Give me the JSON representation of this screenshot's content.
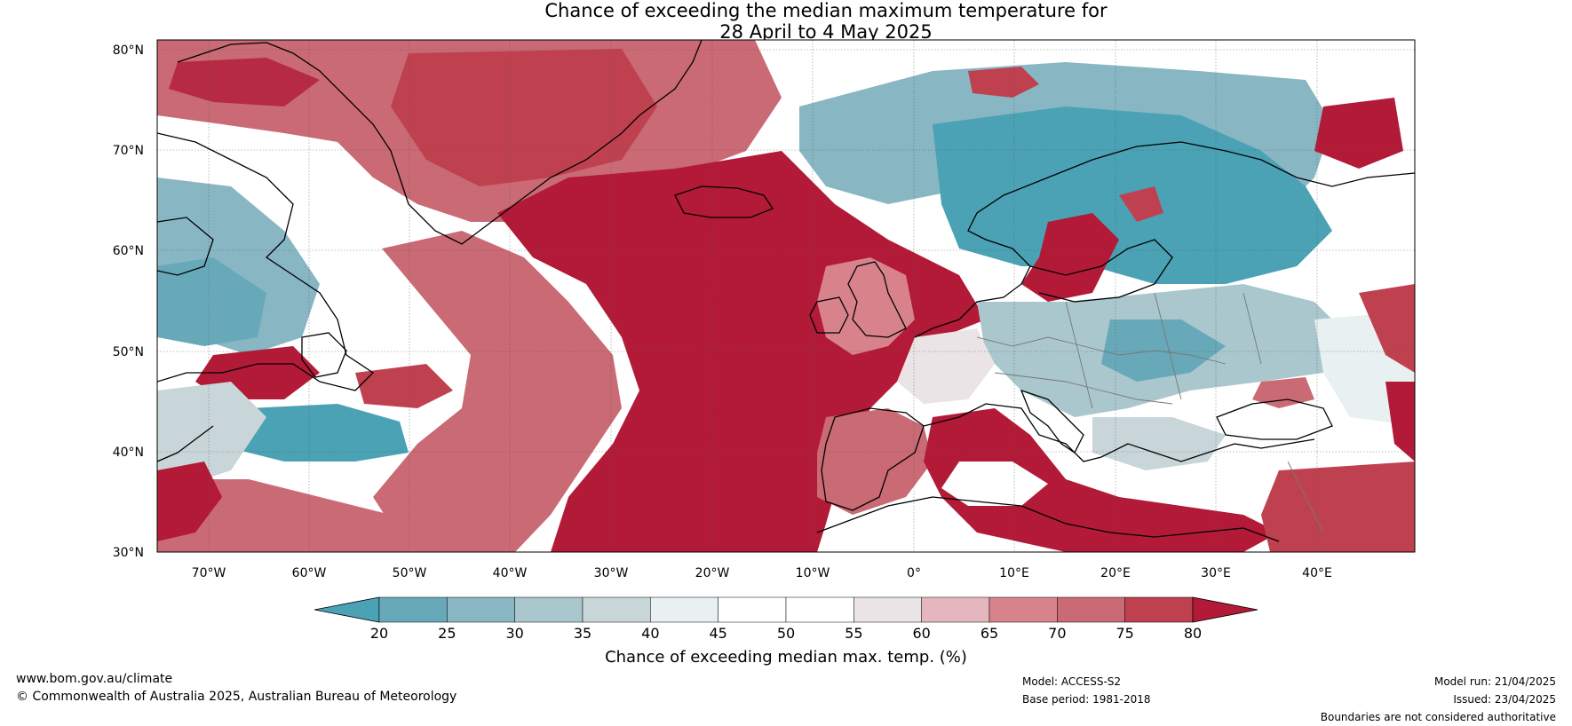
{
  "title": {
    "line1": "Chance of exceeding the median maximum temperature for",
    "line2": "28 April to 4 May 2025"
  },
  "map": {
    "lat_labels": [
      "80°N",
      "70°N",
      "60°N",
      "50°N",
      "40°N",
      "30°N"
    ],
    "lon_labels": [
      "70°W",
      "60°W",
      "50°W",
      "40°W",
      "30°W",
      "20°W",
      "10°W",
      "0°",
      "10°E",
      "20°E",
      "30°E",
      "40°E"
    ],
    "lat_range": [
      30,
      81
    ],
    "lon_range": [
      -75,
      50
    ]
  },
  "colorbar": {
    "tick_labels": [
      "20",
      "25",
      "30",
      "35",
      "40",
      "45",
      "50",
      "55",
      "60",
      "65",
      "70",
      "75",
      "80"
    ],
    "colors": [
      "#4aa2b4",
      "#68a9b9",
      "#88b6c3",
      "#a9c7cc",
      "#c9d6d9",
      "#e9f0f2",
      "#ffffff",
      "#ffffff",
      "#ebe4e6",
      "#e3b7bd",
      "#d8838c",
      "#c96a74",
      "#bf414f",
      "#b21a37"
    ],
    "title": "Chance of exceeding median max. temp. (%)"
  },
  "footer": {
    "website": "www.bom.gov.au/climate",
    "copyright": "© Commonwealth of Australia 2025, Australian Bureau of Meteorology",
    "model": "Model: ACCESS-S2",
    "base_period": "Base period: 1981-2018",
    "model_run": "Model run: 21/04/2025",
    "issued": "Issued: 23/04/2025",
    "disclaimer": "Boundaries are not considered authoritative"
  }
}
